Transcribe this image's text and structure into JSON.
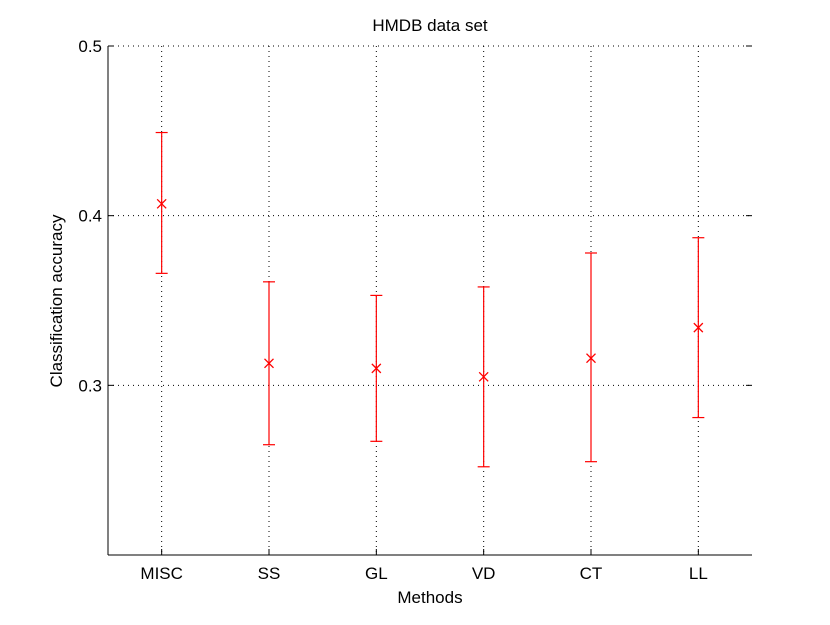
{
  "chart_data": {
    "type": "errorbar",
    "title": "HMDB data set",
    "xlabel": "Methods",
    "ylabel": "Classification accuracy",
    "categories": [
      "MISC",
      "SS",
      "GL",
      "VD",
      "CT",
      "LL"
    ],
    "series": [
      {
        "values": [
          0.407,
          0.313,
          0.31,
          0.305,
          0.316,
          0.334
        ],
        "lower": [
          0.366,
          0.265,
          0.267,
          0.252,
          0.255,
          0.281
        ],
        "upper": [
          0.449,
          0.361,
          0.353,
          0.358,
          0.378,
          0.387
        ]
      }
    ],
    "ylim": [
      0.2,
      0.5
    ],
    "yticks": [
      0.3,
      0.4,
      0.5
    ],
    "ytick_labels": [
      "0.3",
      "0.4",
      "0.5"
    ],
    "grid": true,
    "colors": {
      "series": "#ff0000",
      "axis": "#000000",
      "grid": "#000000"
    }
  }
}
